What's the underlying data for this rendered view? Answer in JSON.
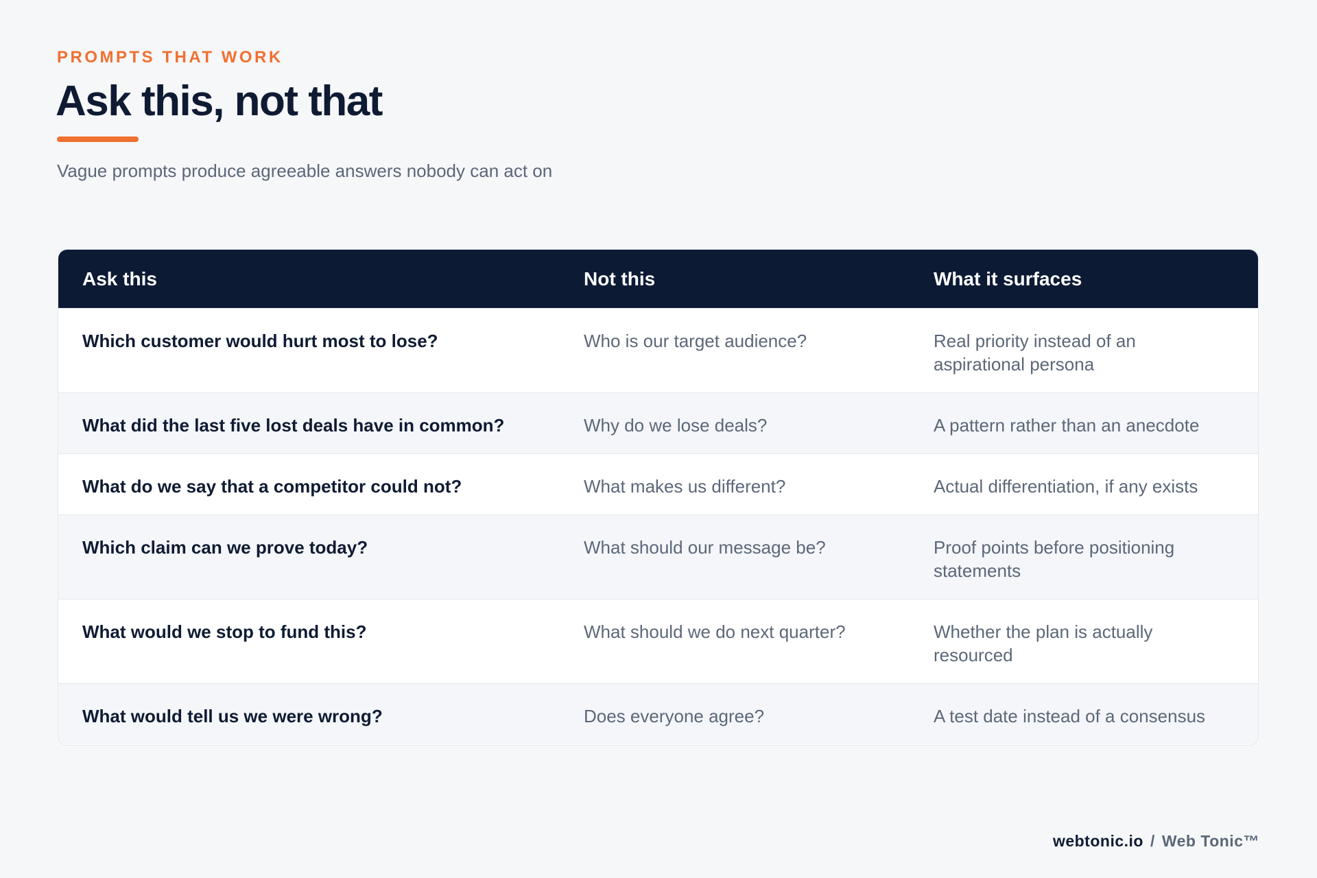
{
  "header": {
    "eyebrow": "PROMPTS THAT WORK",
    "title": "Ask this, not that",
    "subtitle": "Vague prompts produce agreeable answers nobody can act on"
  },
  "table": {
    "columns": [
      "Ask this",
      "Not this",
      "What it surfaces"
    ],
    "rows": [
      {
        "ask": "Which customer would hurt most to lose?",
        "not": "Who is our target audience?",
        "surfaces": "Real priority instead of an aspirational persona"
      },
      {
        "ask": "What did the last five lost deals have in common?",
        "not": "Why do we lose deals?",
        "surfaces": "A pattern rather than an anecdote"
      },
      {
        "ask": "What do we say that a competitor could not?",
        "not": "What makes us different?",
        "surfaces": "Actual differentiation, if any exists"
      },
      {
        "ask": "Which claim can we prove today?",
        "not": "What should our message be?",
        "surfaces": "Proof points before positioning statements"
      },
      {
        "ask": "What would we stop to fund this?",
        "not": "What should we do next quarter?",
        "surfaces": "Whether the plan is actually resourced"
      },
      {
        "ask": "What would tell us we were wrong?",
        "not": "Does everyone agree?",
        "surfaces": "A test date instead of a consensus"
      }
    ]
  },
  "footer": {
    "domain": "webtonic.io",
    "separator": "/",
    "brand": "Web Tonic™"
  },
  "colors": {
    "accent": "#f07030",
    "navy": "#0c1a34",
    "muted_text": "#5c6779",
    "background": "#f6f7f9"
  }
}
